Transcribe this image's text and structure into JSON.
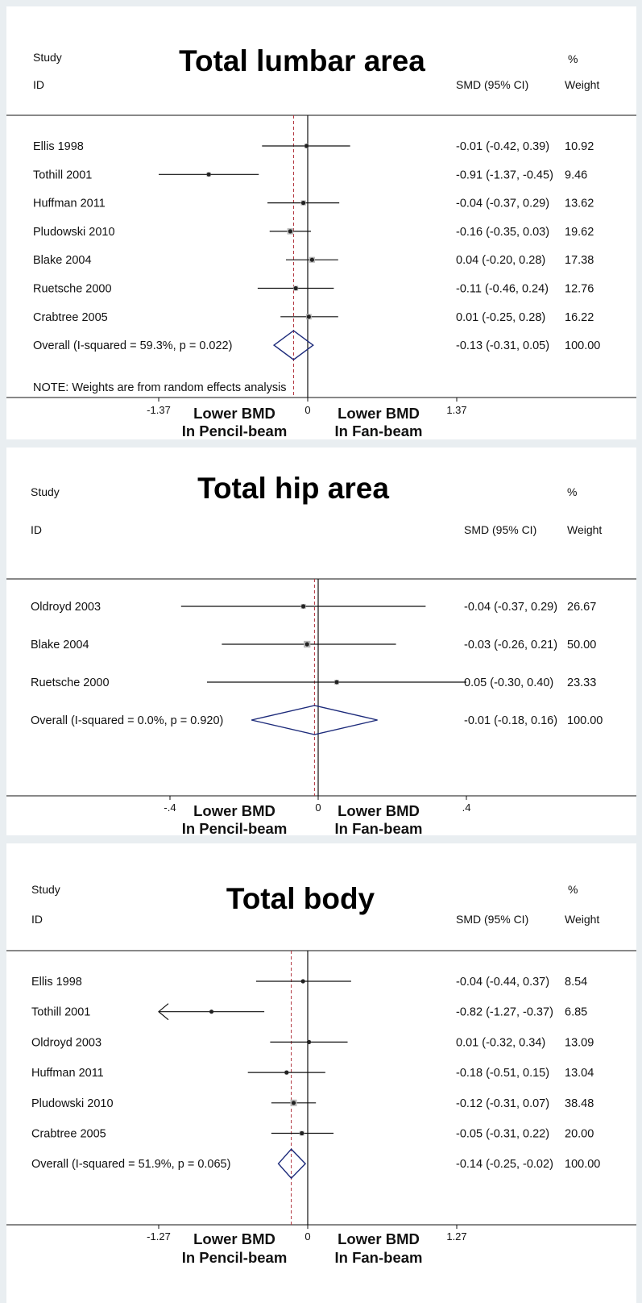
{
  "chart_data": [
    {
      "type": "forest",
      "title": "Total lumbar area",
      "headers": {
        "study": "Study",
        "id": "ID",
        "effect": "SMD (95% CI)",
        "pct": "%",
        "weight": "Weight"
      },
      "studies": [
        {
          "label": "Ellis 1998",
          "smd": -0.01,
          "lo": -0.42,
          "hi": 0.39,
          "ci_text": "-0.01 (-0.42, 0.39)",
          "weight": 10.92,
          "weight_text": "10.92"
        },
        {
          "label": "Tothill 2001",
          "smd": -0.91,
          "lo": -1.37,
          "hi": -0.45,
          "ci_text": "-0.91 (-1.37, -0.45)",
          "weight": 9.46,
          "weight_text": "9.46"
        },
        {
          "label": "Huffman 2011",
          "smd": -0.04,
          "lo": -0.37,
          "hi": 0.29,
          "ci_text": "-0.04 (-0.37, 0.29)",
          "weight": 13.62,
          "weight_text": "13.62"
        },
        {
          "label": "Pludowski 2010",
          "smd": -0.16,
          "lo": -0.35,
          "hi": 0.03,
          "ci_text": "-0.16 (-0.35, 0.03)",
          "weight": 19.62,
          "weight_text": "19.62"
        },
        {
          "label": "Blake 2004",
          "smd": 0.04,
          "lo": -0.2,
          "hi": 0.28,
          "ci_text": "0.04 (-0.20, 0.28)",
          "weight": 17.38,
          "weight_text": "17.38"
        },
        {
          "label": "Ruetsche 2000",
          "smd": -0.11,
          "lo": -0.46,
          "hi": 0.24,
          "ci_text": "-0.11 (-0.46, 0.24)",
          "weight": 12.76,
          "weight_text": "12.76"
        },
        {
          "label": "Crabtree 2005",
          "smd": 0.01,
          "lo": -0.25,
          "hi": 0.28,
          "ci_text": "0.01 (-0.25, 0.28)",
          "weight": 16.22,
          "weight_text": "16.22"
        }
      ],
      "overall": {
        "label": "Overall  (I-squared = 59.3%, p = 0.022)",
        "smd": -0.13,
        "lo": -0.31,
        "hi": 0.05,
        "ci_text": "-0.13 (-0.31, 0.05)",
        "weight_text": "100.00"
      },
      "note": "NOTE: Weights are from random effects analysis",
      "xlim": [
        -1.37,
        1.37
      ],
      "ticks": [
        {
          "v": -1.37,
          "label": "-1.37"
        },
        {
          "v": 0,
          "label": "0"
        },
        {
          "v": 1.37,
          "label": "1.37"
        }
      ],
      "left_label": [
        "Lower BMD",
        "In Pencil-beam"
      ],
      "right_label": [
        "Lower BMD",
        "In Fan-beam"
      ]
    },
    {
      "type": "forest",
      "title": "Total hip area",
      "headers": {
        "study": "Study",
        "id": "ID",
        "effect": "SMD (95% CI)",
        "pct": "%",
        "weight": "Weight"
      },
      "studies": [
        {
          "label": "Oldroyd 2003",
          "smd": -0.04,
          "lo": -0.37,
          "hi": 0.29,
          "ci_text": "-0.04 (-0.37, 0.29)",
          "weight": 26.67,
          "weight_text": "26.67"
        },
        {
          "label": "Blake 2004",
          "smd": -0.03,
          "lo": -0.26,
          "hi": 0.21,
          "ci_text": "-0.03 (-0.26, 0.21)",
          "weight": 50.0,
          "weight_text": "50.00"
        },
        {
          "label": "Ruetsche 2000",
          "smd": 0.05,
          "lo": -0.3,
          "hi": 0.4,
          "ci_text": "0.05 (-0.30, 0.40)",
          "weight": 23.33,
          "weight_text": "23.33"
        }
      ],
      "overall": {
        "label": "Overall  (I-squared = 0.0%, p = 0.920)",
        "smd": -0.01,
        "lo": -0.18,
        "hi": 0.16,
        "ci_text": "-0.01 (-0.18, 0.16)",
        "weight_text": "100.00"
      },
      "note": "",
      "xlim": [
        -0.4,
        0.4
      ],
      "ticks": [
        {
          "v": -0.4,
          "label": "-.4"
        },
        {
          "v": 0,
          "label": "0"
        },
        {
          "v": 0.4,
          "label": ".4"
        }
      ],
      "left_label": [
        "Lower BMD",
        "In Pencil-beam"
      ],
      "right_label": [
        "Lower BMD",
        "In Fan-beam"
      ]
    },
    {
      "type": "forest",
      "title": "Total body",
      "headers": {
        "study": "Study",
        "id": "ID",
        "effect": "SMD (95% CI)",
        "pct": "%",
        "weight": "Weight"
      },
      "studies": [
        {
          "label": "Ellis 1998",
          "smd": -0.04,
          "lo": -0.44,
          "hi": 0.37,
          "ci_text": "-0.04 (-0.44, 0.37)",
          "weight": 8.54,
          "weight_text": "8.54"
        },
        {
          "label": "Tothill 2001",
          "smd": -0.82,
          "lo": -1.27,
          "hi": -0.37,
          "ci_text": "-0.82 (-1.27, -0.37)",
          "weight": 6.85,
          "weight_text": "6.85",
          "arrow_left": true
        },
        {
          "label": "Oldroyd 2003",
          "smd": 0.01,
          "lo": -0.32,
          "hi": 0.34,
          "ci_text": "0.01 (-0.32, 0.34)",
          "weight": 13.09,
          "weight_text": "13.09"
        },
        {
          "label": "Huffman 2011",
          "smd": -0.18,
          "lo": -0.51,
          "hi": 0.15,
          "ci_text": "-0.18 (-0.51, 0.15)",
          "weight": 13.04,
          "weight_text": "13.04"
        },
        {
          "label": "Pludowski 2010",
          "smd": -0.12,
          "lo": -0.31,
          "hi": 0.07,
          "ci_text": "-0.12 (-0.31, 0.07)",
          "weight": 38.48,
          "weight_text": "38.48"
        },
        {
          "label": "Crabtree 2005",
          "smd": -0.05,
          "lo": -0.31,
          "hi": 0.22,
          "ci_text": "-0.05 (-0.31, 0.22)",
          "weight": 20.0,
          "weight_text": "20.00"
        }
      ],
      "overall": {
        "label": "Overall  (I-squared = 51.9%, p = 0.065)",
        "smd": -0.14,
        "lo": -0.25,
        "hi": -0.02,
        "ci_text": "-0.14 (-0.25, -0.02)",
        "weight_text": "100.00"
      },
      "note": "",
      "xlim": [
        -1.27,
        1.27
      ],
      "ticks": [
        {
          "v": -1.27,
          "label": "-1.27"
        },
        {
          "v": 0,
          "label": "0"
        },
        {
          "v": 1.27,
          "label": "1.27"
        }
      ],
      "left_label": [
        "Lower BMD",
        "In Pencil-beam"
      ],
      "right_label": [
        "Lower BMD",
        "In Fan-beam"
      ]
    }
  ],
  "colors": {
    "diamond": "#1c2a7a",
    "overall_line": "#b0303a",
    "ci_line": "#111111",
    "weight_box": "#b8b8b8",
    "axis": "#111111"
  }
}
